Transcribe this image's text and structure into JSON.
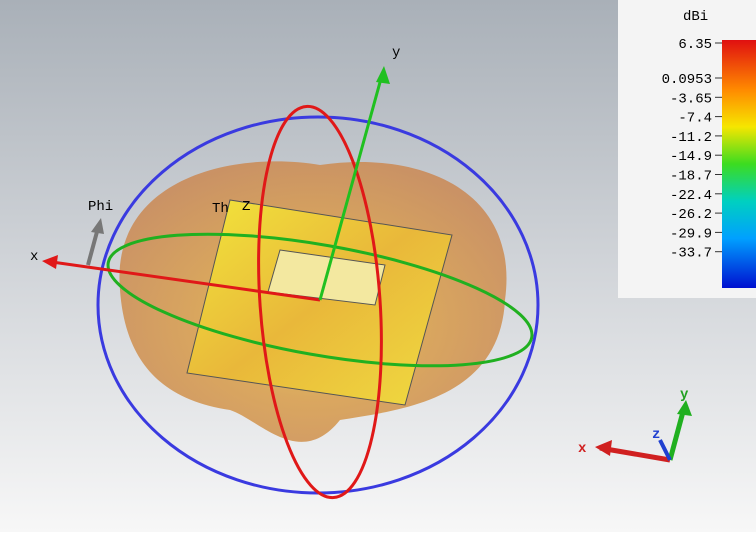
{
  "axes_labels": {
    "x": "x",
    "y": "y",
    "phi": "Phi",
    "theta": "Th",
    "z": "Z"
  },
  "colorbar": {
    "unit": "dBi",
    "labels": [
      "6.35",
      "0.0953",
      "-3.65",
      "-7.4",
      "-11.2",
      "-14.9",
      "-18.7",
      "-22.4",
      "-26.2",
      "-29.9",
      "-33.7"
    ]
  },
  "triad": {
    "x": "x",
    "y": "y",
    "z": "z"
  }
}
